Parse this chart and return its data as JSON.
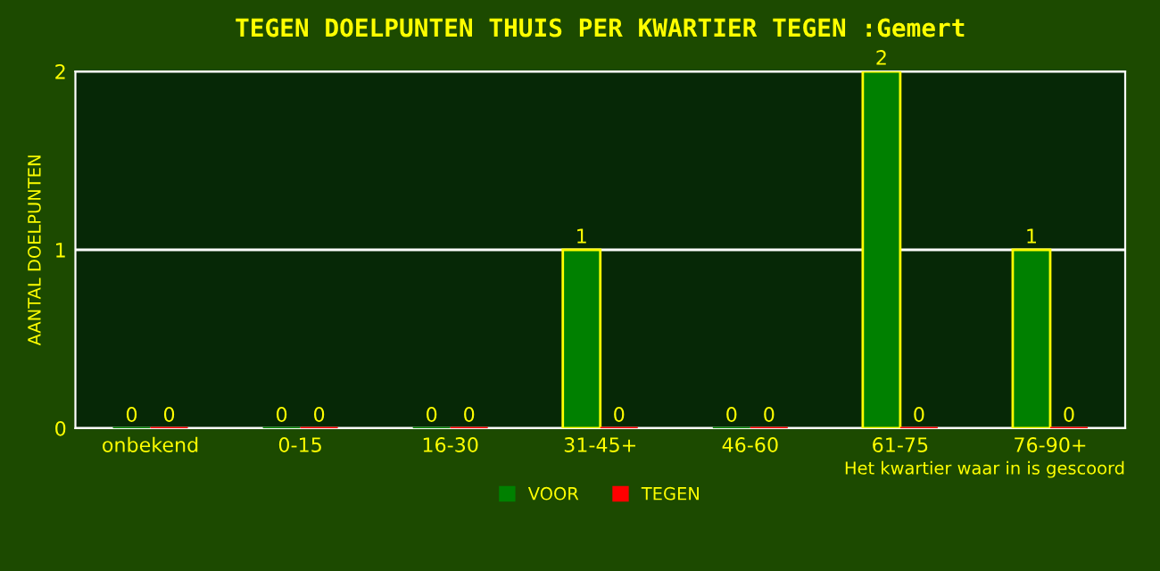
{
  "chart_data": {
    "type": "bar",
    "title": "TEGEN DOELPUNTEN THUIS PER KWARTIER TEGEN :Gemert",
    "ylabel": "AANTAL DOELPUNTEN",
    "xlabel": "Het kwartier waar in is gescoord",
    "categories": [
      "onbekend",
      "0-15",
      "16-30",
      "31-45+",
      "46-60",
      "61-75",
      "76-90+"
    ],
    "series": [
      {
        "name": "VOOR",
        "color": "#008000",
        "values": [
          0,
          0,
          0,
          1,
          0,
          2,
          1
        ]
      },
      {
        "name": "TEGEN",
        "color": "#ff0000",
        "values": [
          0,
          0,
          0,
          0,
          0,
          0,
          0
        ]
      }
    ],
    "ylim": [
      0,
      2
    ],
    "yticks": [
      0,
      1,
      2
    ],
    "grid": "y",
    "legend": "bottom",
    "data_labels": true
  }
}
